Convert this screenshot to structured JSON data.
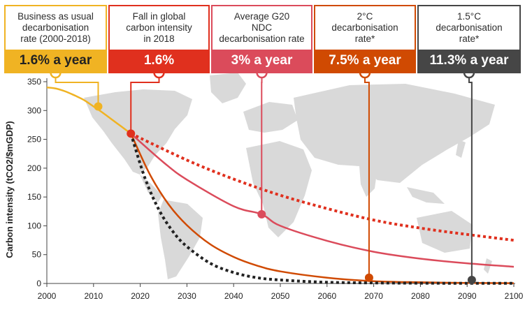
{
  "boxes": [
    {
      "label": "Business as usual\ndecarbonisation\nrate (2000-2018)",
      "rate": "1.6% a year",
      "color": "#f0b323",
      "text_color": "#222222"
    },
    {
      "label": "Fall in global\ncarbon intensity\nin 2018",
      "rate": "1.6%",
      "color": "#e0301e",
      "text_color": "#ffffff"
    },
    {
      "label": "Average G20\nNDC\ndecarbonisation rate",
      "rate": "3% a year",
      "color": "#db4b5b",
      "text_color": "#ffffff"
    },
    {
      "label": "2°C\ndecarbonisation\nrate*",
      "rate": "7.5% a year",
      "color": "#d04a02",
      "text_color": "#ffffff"
    },
    {
      "label": "1.5°C\ndecarbonisation\nrate*",
      "rate": "11.3% a year",
      "color": "#464646",
      "text_color": "#ffffff"
    }
  ],
  "chart_data": {
    "type": "line",
    "title": "",
    "xlabel": "",
    "ylabel": "Carbon intensity (tCO2/$mGDP)",
    "xlim": [
      2000,
      2100
    ],
    "ylim": [
      0,
      350
    ],
    "x_ticks": [
      "2000",
      "2010",
      "2020",
      "2030",
      "2040",
      "2050",
      "2060",
      "2070",
      "2080",
      "2090",
      "2100"
    ],
    "y_ticks": [
      "0",
      "50",
      "100",
      "150",
      "200",
      "250",
      "300",
      "350"
    ],
    "grid": false,
    "series": [
      {
        "key": "bau",
        "color": "#f0b323",
        "style": "solid",
        "points": [
          [
            2000,
            340
          ],
          [
            2002,
            338
          ],
          [
            2004,
            333
          ],
          [
            2006,
            326
          ],
          [
            2008,
            318
          ],
          [
            2010,
            307
          ],
          [
            2012,
            296
          ],
          [
            2014,
            284
          ],
          [
            2016,
            272
          ],
          [
            2018,
            260
          ]
        ]
      },
      {
        "key": "fall2018",
        "color": "#e0301e",
        "style": "dotted",
        "points": [
          [
            2018,
            260
          ],
          [
            2030,
            214
          ],
          [
            2040,
            181
          ],
          [
            2050,
            153
          ],
          [
            2060,
            130
          ],
          [
            2070,
            110
          ],
          [
            2080,
            96
          ],
          [
            2090,
            85
          ],
          [
            2100,
            75
          ]
        ]
      },
      {
        "key": "g20",
        "color": "#db4b5b",
        "style": "solid",
        "points": [
          [
            2018,
            260
          ],
          [
            2025,
            210
          ],
          [
            2030,
            180
          ],
          [
            2040,
            134
          ],
          [
            2046,
            120
          ],
          [
            2050,
            100
          ],
          [
            2060,
            74
          ],
          [
            2070,
            55
          ],
          [
            2080,
            43
          ],
          [
            2090,
            35
          ],
          [
            2100,
            29
          ]
        ]
      },
      {
        "key": "c2",
        "color": "#d04a02",
        "style": "solid",
        "points": [
          [
            2018,
            260
          ],
          [
            2022,
            190
          ],
          [
            2026,
            138
          ],
          [
            2030,
            101
          ],
          [
            2035,
            68
          ],
          [
            2040,
            46
          ],
          [
            2045,
            31
          ],
          [
            2050,
            21
          ],
          [
            2060,
            10
          ],
          [
            2070,
            4
          ],
          [
            2080,
            2
          ],
          [
            2090,
            1
          ],
          [
            2100,
            0.5
          ]
        ]
      },
      {
        "key": "c15",
        "color": "#222222",
        "style": "dotted",
        "points": [
          [
            2018,
            260
          ],
          [
            2021,
            183
          ],
          [
            2024,
            128
          ],
          [
            2027,
            90
          ],
          [
            2030,
            64
          ],
          [
            2035,
            35
          ],
          [
            2040,
            19
          ],
          [
            2045,
            10
          ],
          [
            2050,
            6
          ],
          [
            2060,
            2
          ],
          [
            2070,
            1
          ],
          [
            2080,
            0.5
          ],
          [
            2090,
            0.3
          ],
          [
            2100,
            0.2
          ]
        ]
      }
    ],
    "markers": [
      {
        "x": 2011,
        "y": 307,
        "box": 0,
        "color": "#f0b323"
      },
      {
        "x": 2018,
        "y": 260,
        "box": 1,
        "color": "#e0301e"
      },
      {
        "x": 2046,
        "y": 120,
        "box": 2,
        "color": "#db4b5b"
      },
      {
        "x": 2069,
        "y": 10,
        "box": 3,
        "color": "#d04a02"
      },
      {
        "x": 2091,
        "y": 6,
        "box": 4,
        "color": "#464646"
      }
    ]
  }
}
